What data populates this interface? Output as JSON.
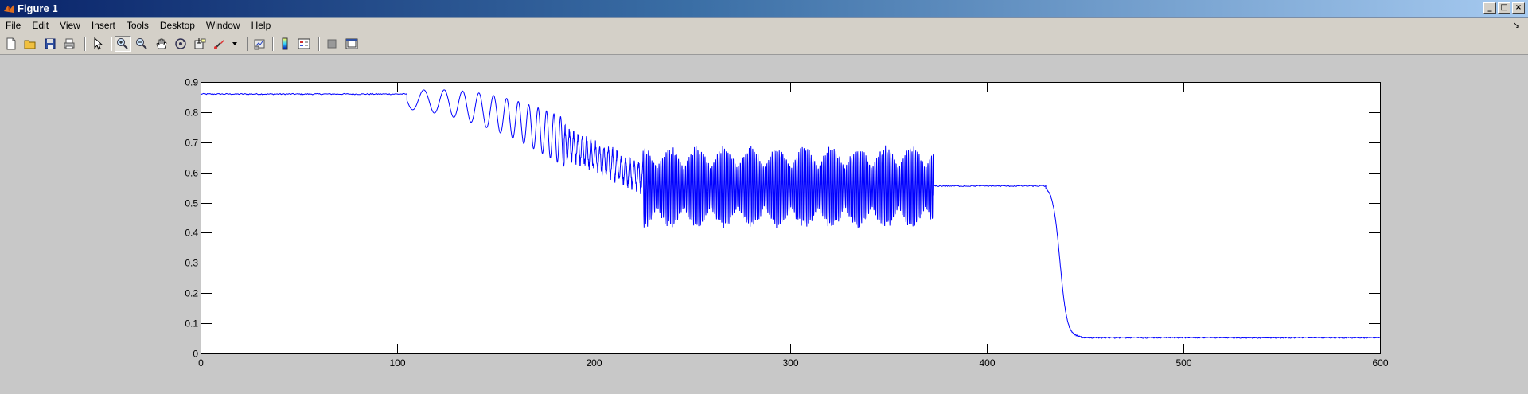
{
  "window": {
    "title": "Figure 1",
    "controls": [
      "_",
      "□",
      "×"
    ]
  },
  "menu": [
    "File",
    "Edit",
    "View",
    "Insert",
    "Tools",
    "Desktop",
    "Window",
    "Help"
  ],
  "toolbar": {
    "buttons": [
      "new-figure-icon",
      "open-file-icon",
      "save-icon",
      "print-icon",
      "edit-plot-arrow-icon",
      "zoom-in-icon",
      "zoom-out-icon",
      "pan-hand-icon",
      "rotate-3d-icon",
      "data-cursor-icon",
      "brush-icon",
      "brush-dropdown-icon",
      "link-plot-icon",
      "colorbar-icon",
      "legend-icon",
      "hide-plot-tools-icon",
      "show-plot-tools-icon"
    ],
    "pressed": "zoom-in-icon"
  },
  "colors": {
    "line": "#0000ff",
    "axes_bg": "#ffffff",
    "figure_bg": "#c8c8c8",
    "titlebar_start": "#0a246a",
    "titlebar_end": "#a6caf0"
  },
  "chart_data": {
    "type": "line",
    "title": "",
    "xlabel": "",
    "ylabel": "",
    "xlim": [
      0,
      600
    ],
    "ylim": [
      0,
      0.9
    ],
    "xticks": [
      "0",
      "100",
      "200",
      "300",
      "400",
      "500",
      "600"
    ],
    "yticks": [
      "0",
      "0.1",
      "0.2",
      "0.3",
      "0.4",
      "0.5",
      "0.6",
      "0.7",
      "0.8",
      "0.9"
    ],
    "grid": false,
    "legend": "none",
    "series": [
      {
        "color": "#0000ff",
        "segments": [
          {
            "x_start": 0,
            "x_end": 105,
            "level": 0.86,
            "behavior": "flat"
          },
          {
            "x_start": 105,
            "x_end": 185,
            "level_start": 0.84,
            "level_end": 0.7,
            "amplitude_start": 0.03,
            "amplitude_end": 0.08,
            "period_start": 12,
            "period_end": 3,
            "behavior": "chirp"
          },
          {
            "x_start": 185,
            "x_end": 225,
            "level_start": 0.7,
            "level_end": 0.58,
            "amplitude": 0.06,
            "behavior": "noisy-oscillation"
          },
          {
            "x_start": 225,
            "x_end": 373,
            "level": 0.55,
            "amplitude": 0.14,
            "behavior": "dense-oscillation"
          },
          {
            "x_start": 373,
            "x_end": 430,
            "level": 0.555,
            "behavior": "flat"
          },
          {
            "x_start": 430,
            "x_end": 448,
            "level_start": 0.555,
            "level_end": 0.055,
            "behavior": "drop"
          },
          {
            "x_start": 448,
            "x_end": 600,
            "level": 0.052,
            "behavior": "flat"
          }
        ]
      }
    ]
  }
}
